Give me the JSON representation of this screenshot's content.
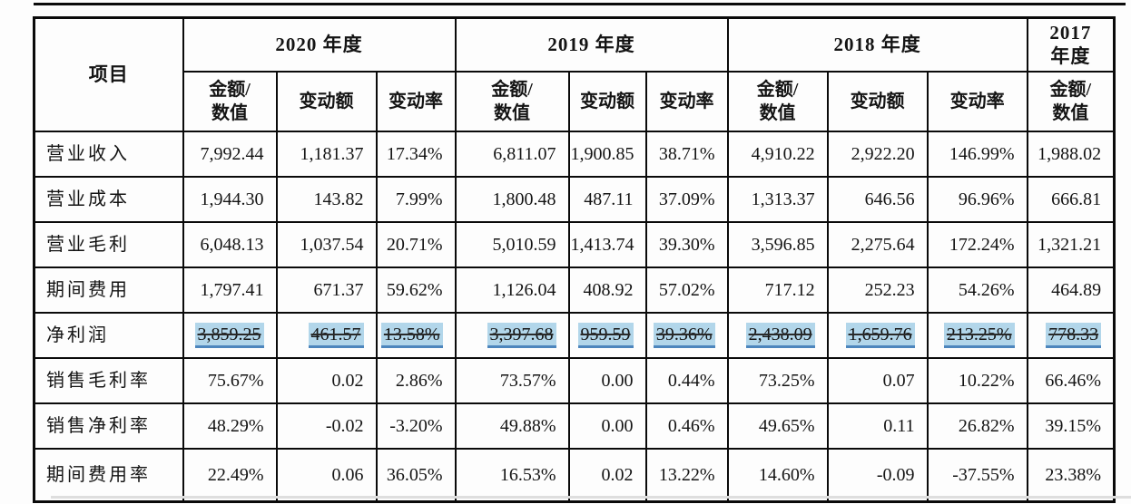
{
  "table": {
    "corner_header": "项目",
    "year_groups": [
      {
        "label": "2020 年度",
        "colspan": 3
      },
      {
        "label": "2019 年度",
        "colspan": 3
      },
      {
        "label": "2018 年度",
        "colspan": 3
      },
      {
        "label": "2017 年度",
        "colspan": 1
      }
    ],
    "sub_headers": [
      "金额/数值",
      "变动额",
      "变动率",
      "金额/数值",
      "变动额",
      "变动率",
      "金额/数值",
      "变动额",
      "变动率",
      "金额/数值"
    ],
    "rows": [
      {
        "label": "营业收入",
        "highlight": false,
        "values": [
          "7,992.44",
          "1,181.37",
          "17.34%",
          "6,811.07",
          "1,900.85",
          "38.71%",
          "4,910.22",
          "2,922.20",
          "146.99%",
          "1,988.02"
        ]
      },
      {
        "label": "营业成本",
        "highlight": false,
        "values": [
          "1,944.30",
          "143.82",
          "7.99%",
          "1,800.48",
          "487.11",
          "37.09%",
          "1,313.37",
          "646.56",
          "96.96%",
          "666.81"
        ]
      },
      {
        "label": "营业毛利",
        "highlight": false,
        "values": [
          "6,048.13",
          "1,037.54",
          "20.71%",
          "5,010.59",
          "1,413.74",
          "39.30%",
          "3,596.85",
          "2,275.64",
          "172.24%",
          "1,321.21"
        ]
      },
      {
        "label": "期间费用",
        "highlight": false,
        "values": [
          "1,797.41",
          "671.37",
          "59.62%",
          "1,126.04",
          "408.92",
          "57.02%",
          "717.12",
          "252.23",
          "54.26%",
          "464.89"
        ]
      },
      {
        "label": "净利润",
        "highlight": true,
        "values": [
          "3,859.25",
          "461.57",
          "13.58%",
          "3,397.68",
          "959.59",
          "39.36%",
          "2,438.09",
          "1,659.76",
          "213.25%",
          "778.33"
        ]
      },
      {
        "label": "销售毛利率",
        "highlight": false,
        "values": [
          "75.67%",
          "0.02",
          "2.86%",
          "73.57%",
          "0.00",
          "0.44%",
          "73.25%",
          "0.07",
          "10.22%",
          "66.46%"
        ]
      },
      {
        "label": "销售净利率",
        "highlight": false,
        "values": [
          "48.29%",
          "-0.02",
          "-3.20%",
          "49.88%",
          "0.00",
          "0.46%",
          "49.65%",
          "0.11",
          "26.82%",
          "39.15%"
        ]
      },
      {
        "label": "期间费用率",
        "highlight": false,
        "values": [
          "22.49%",
          "0.06",
          "36.05%",
          "16.53%",
          "0.02",
          "13.22%",
          "14.60%",
          "-0.09",
          "-37.55%",
          "23.38%"
        ]
      }
    ],
    "colors": {
      "highlight_background": "#b2d6ea",
      "highlight_underline": "#4d86bd",
      "border": "#0a0a0a",
      "text": "#141414"
    }
  }
}
